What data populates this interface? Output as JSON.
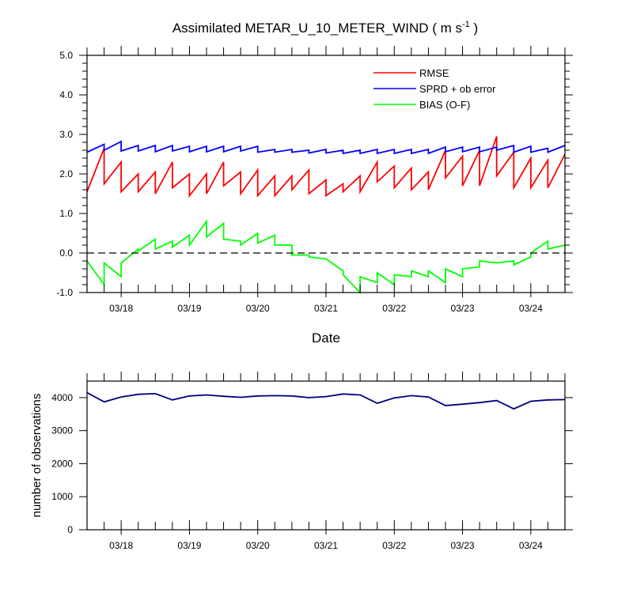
{
  "chart_data": [
    {
      "type": "line",
      "title": "Assimilated METAR_U_10_METER_WIND ( m s",
      "title_units_superscript": "-1",
      "title_close": " )",
      "xlabel": "Date",
      "ylabel": "",
      "xlim": [
        17.5,
        24.5
      ],
      "ylim": [
        -1.0,
        5.0
      ],
      "yticks": [
        "-1.0",
        "0.0",
        "1.0",
        "2.0",
        "3.0",
        "4.0",
        "5.0"
      ],
      "xtick_labels": [
        "03/18",
        "03/19",
        "03/20",
        "03/21",
        "03/22",
        "03/23",
        "03/24"
      ],
      "xtick_days": [
        18,
        19,
        20,
        21,
        22,
        23,
        24
      ],
      "zero_line": true,
      "legend_position": "top-right",
      "series": [
        {
          "name": "RMSE",
          "color": "#ff0000",
          "x": [
            17.5,
            17.75,
            17.75,
            18.0,
            18.0,
            18.25,
            18.25,
            18.5,
            18.5,
            18.75,
            18.75,
            19.0,
            19.0,
            19.25,
            19.25,
            19.5,
            19.5,
            19.75,
            19.75,
            20.0,
            20.0,
            20.25,
            20.25,
            20.5,
            20.5,
            20.75,
            20.75,
            21.0,
            21.0,
            21.25,
            21.25,
            21.5,
            21.5,
            21.75,
            21.75,
            22.0,
            22.0,
            22.25,
            22.25,
            22.5,
            22.5,
            22.75,
            22.75,
            23.0,
            23.0,
            23.25,
            23.25,
            23.5,
            23.5,
            23.75,
            23.75,
            24.0,
            24.0,
            24.25,
            24.25,
            24.5
          ],
          "y": [
            1.55,
            2.65,
            1.75,
            2.3,
            1.55,
            2.0,
            1.55,
            2.05,
            1.5,
            2.3,
            1.65,
            2.0,
            1.45,
            2.0,
            1.5,
            2.3,
            1.7,
            2.05,
            1.5,
            2.1,
            1.45,
            1.95,
            1.45,
            1.95,
            1.6,
            2.1,
            1.5,
            1.85,
            1.45,
            1.75,
            1.55,
            1.95,
            1.55,
            2.3,
            1.8,
            2.2,
            1.65,
            2.15,
            1.6,
            2.05,
            1.6,
            2.6,
            1.9,
            2.45,
            1.7,
            2.6,
            1.7,
            2.95,
            1.95,
            2.55,
            1.65,
            2.4,
            1.65,
            2.35,
            1.65,
            2.5
          ]
        },
        {
          "name": "SPRD + ob error",
          "color": "#0000ff",
          "x": [
            17.5,
            17.75,
            17.75,
            18.0,
            18.0,
            18.25,
            18.25,
            18.5,
            18.5,
            18.75,
            18.75,
            19.0,
            19.0,
            19.25,
            19.25,
            19.5,
            19.5,
            19.75,
            19.75,
            20.0,
            20.0,
            20.25,
            20.25,
            20.5,
            20.5,
            20.75,
            20.75,
            21.0,
            21.0,
            21.25,
            21.25,
            21.5,
            21.5,
            21.75,
            21.75,
            22.0,
            22.0,
            22.25,
            22.25,
            22.5,
            22.5,
            22.75,
            22.75,
            23.0,
            23.0,
            23.25,
            23.25,
            23.5,
            23.5,
            23.75,
            23.75,
            24.0,
            24.0,
            24.25,
            24.25,
            24.5
          ],
          "y": [
            2.55,
            2.75,
            2.6,
            2.82,
            2.58,
            2.72,
            2.58,
            2.72,
            2.56,
            2.72,
            2.58,
            2.7,
            2.56,
            2.7,
            2.56,
            2.7,
            2.56,
            2.7,
            2.58,
            2.7,
            2.55,
            2.62,
            2.55,
            2.62,
            2.55,
            2.6,
            2.53,
            2.62,
            2.53,
            2.6,
            2.52,
            2.6,
            2.52,
            2.62,
            2.52,
            2.62,
            2.52,
            2.62,
            2.52,
            2.62,
            2.52,
            2.68,
            2.56,
            2.68,
            2.56,
            2.68,
            2.56,
            2.68,
            2.6,
            2.72,
            2.55,
            2.7,
            2.55,
            2.65,
            2.55,
            2.72
          ]
        },
        {
          "name": "BIAS (O-F)",
          "color": "#00ff00",
          "x": [
            17.5,
            17.75,
            17.75,
            18.0,
            18.0,
            18.25,
            18.25,
            18.5,
            18.5,
            18.75,
            18.75,
            19.0,
            19.0,
            19.25,
            19.25,
            19.5,
            19.5,
            19.75,
            19.75,
            20.0,
            20.0,
            20.25,
            20.25,
            20.5,
            20.5,
            20.75,
            20.75,
            21.0,
            21.0,
            21.25,
            21.25,
            21.5,
            21.5,
            21.75,
            21.75,
            22.0,
            22.0,
            22.25,
            22.25,
            22.5,
            22.5,
            22.75,
            22.75,
            23.0,
            23.0,
            23.25,
            23.25,
            23.5,
            23.5,
            23.75,
            23.75,
            24.0,
            24.0,
            24.25,
            24.25,
            24.5
          ],
          "y": [
            -0.2,
            -0.8,
            -0.25,
            -0.6,
            -0.25,
            0.1,
            0.05,
            0.35,
            0.1,
            0.3,
            0.15,
            0.45,
            0.2,
            0.8,
            0.4,
            0.75,
            0.35,
            0.3,
            0.2,
            0.5,
            0.25,
            0.45,
            0.2,
            0.2,
            -0.05,
            -0.05,
            -0.1,
            -0.15,
            -0.15,
            -0.45,
            -0.55,
            -1.0,
            -0.6,
            -0.75,
            -0.5,
            -0.8,
            -0.55,
            -0.6,
            -0.45,
            -0.6,
            -0.45,
            -0.75,
            -0.4,
            -0.6,
            -0.4,
            -0.35,
            -0.2,
            -0.25,
            -0.25,
            -0.2,
            -0.3,
            -0.1,
            0.0,
            0.3,
            0.1,
            0.2
          ]
        }
      ]
    },
    {
      "type": "line",
      "title": "",
      "xlabel": "",
      "ylabel": "number of observations",
      "xlim": [
        17.5,
        24.5
      ],
      "ylim": [
        0,
        4500
      ],
      "yticks": [
        "0",
        "1000",
        "2000",
        "3000",
        "4000"
      ],
      "xtick_labels": [
        "03/18",
        "03/19",
        "03/20",
        "03/21",
        "03/22",
        "03/23",
        "03/24"
      ],
      "xtick_days": [
        18,
        19,
        20,
        21,
        22,
        23,
        24
      ],
      "series": [
        {
          "name": "observations",
          "color": "#000080",
          "x": [
            17.5,
            17.75,
            18.0,
            18.25,
            18.5,
            18.75,
            19.0,
            19.25,
            19.5,
            19.75,
            20.0,
            20.25,
            20.5,
            20.75,
            21.0,
            21.25,
            21.5,
            21.75,
            22.0,
            22.25,
            22.5,
            22.75,
            23.0,
            23.25,
            23.5,
            23.75,
            24.0,
            24.25,
            24.5
          ],
          "y": [
            4150,
            3870,
            4020,
            4100,
            4120,
            3930,
            4050,
            4080,
            4040,
            4010,
            4050,
            4060,
            4050,
            4000,
            4030,
            4110,
            4080,
            3830,
            3990,
            4060,
            4020,
            3760,
            3800,
            3850,
            3910,
            3660,
            3890,
            3930,
            3940
          ]
        }
      ]
    }
  ]
}
